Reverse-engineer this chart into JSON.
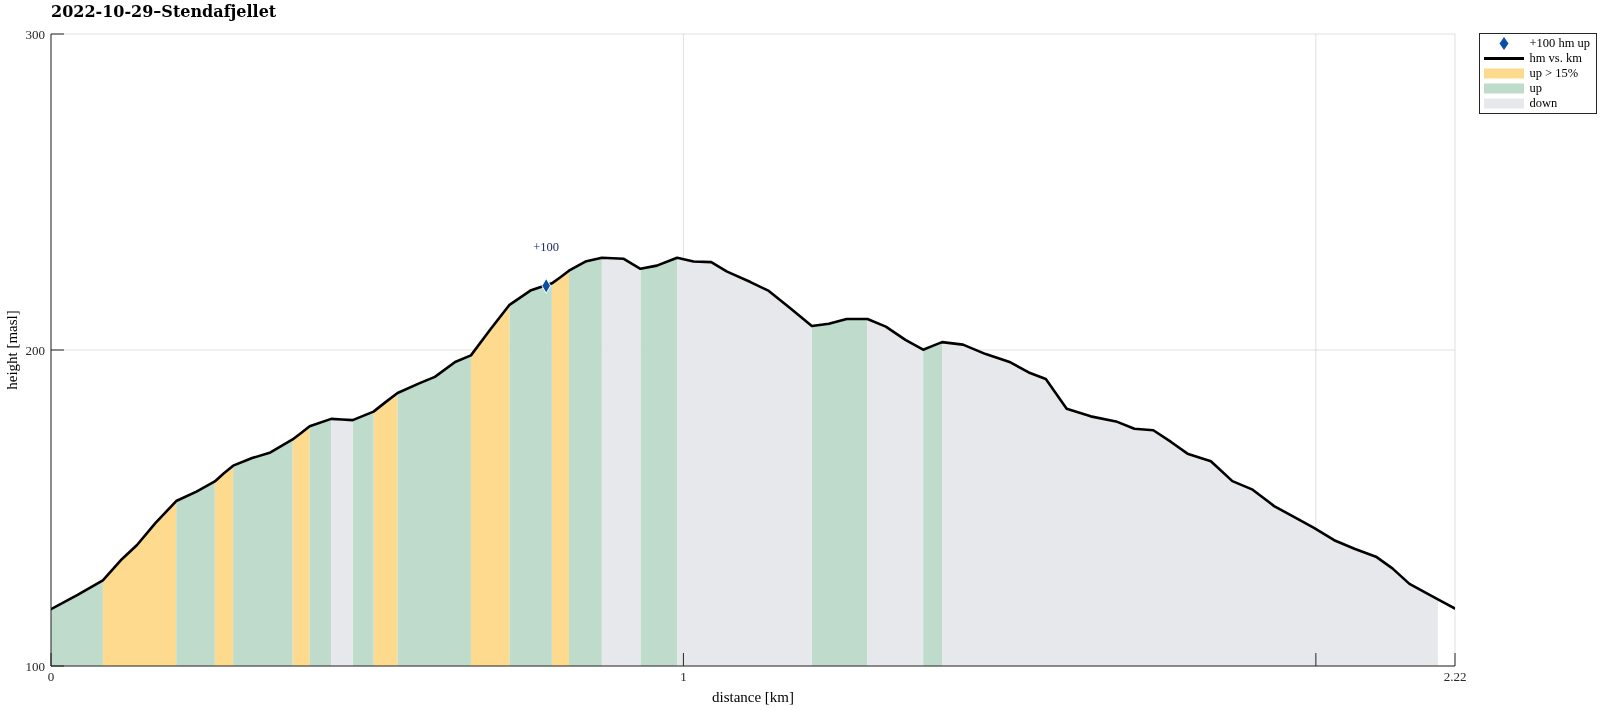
{
  "chart_data": {
    "type": "area",
    "title": "2022-10-29–Stendafjellet",
    "xlabel": "distance [km]",
    "ylabel": "height [masl]",
    "x": [
      0,
      0.042,
      0.082,
      0.112,
      0.136,
      0.165,
      0.198,
      0.23,
      0.259,
      0.273,
      0.288,
      0.318,
      0.347,
      0.382,
      0.396,
      0.409,
      0.443,
      0.46,
      0.477,
      0.51,
      0.529,
      0.548,
      0.583,
      0.607,
      0.639,
      0.664,
      0.694,
      0.725,
      0.758,
      0.792,
      0.806,
      0.819,
      0.845,
      0.871,
      0.905,
      0.932,
      0.958,
      0.99,
      1.016,
      1.044,
      1.069,
      1.106,
      1.135,
      1.169,
      1.203,
      1.23,
      1.258,
      1.291,
      1.32,
      1.351,
      1.379,
      1.394,
      1.409,
      1.442,
      1.478,
      1.517,
      1.546,
      1.573,
      1.606,
      1.644,
      1.684,
      1.713,
      1.743,
      1.771,
      1.797,
      1.834,
      1.868,
      1.9,
      1.934,
      1.966,
      1.997,
      2.029,
      2.061,
      2.095,
      2.121,
      2.148,
      2.193,
      2.22
    ],
    "xlim": [
      0,
      2.22
    ],
    "xticks": [
      0,
      1,
      {
        "value": 2,
        "label": null
      },
      2.22
    ],
    "ylim": [
      100,
      300
    ],
    "yticks": [
      100,
      200,
      300
    ],
    "grid": true,
    "legend": "top right",
    "annotations": [
      {
        "text": "+100",
        "x": 0.783,
        "y": 220.3
      }
    ],
    "series": [
      {
        "name": "+100 hm up",
        "type": "scatter",
        "color": "#0b4ea6",
        "marker": "diamond",
        "x": [
          0.783
        ],
        "values": [
          220.3
        ]
      },
      {
        "name": "hm vs. km",
        "type": "line",
        "color": "#000000",
        "values": [
          118.0,
          122.5,
          127.1,
          133.8,
          138.3,
          145.2,
          152.2,
          155.2,
          158.4,
          160.9,
          163.4,
          165.8,
          167.6,
          171.7,
          173.8,
          175.9,
          178.2,
          178.0,
          177.8,
          180.5,
          183.5,
          186.4,
          189.5,
          191.5,
          196.2,
          198.3,
          206.3,
          214.3,
          218.8,
          221.1,
          223.1,
          225.1,
          228.0,
          229.2,
          228.9,
          225.7,
          226.7,
          229.2,
          228.0,
          227.8,
          224.8,
          221.5,
          218.7,
          213.2,
          207.6,
          208.3,
          209.8,
          209.8,
          207.4,
          203.2,
          200.1,
          201.3,
          202.5,
          201.7,
          198.7,
          196.1,
          192.9,
          190.8,
          181.4,
          179.0,
          177.4,
          175.1,
          174.6,
          170.9,
          167.2,
          164.8,
          158.5,
          155.8,
          150.6,
          147.1,
          143.7,
          139.8,
          137.1,
          134.6,
          130.9,
          126.0,
          121.1,
          118.2
        ]
      },
      {
        "name": "up > 15%",
        "color": "#fdda8e",
        "values": [
          null,
          null,
          127.1,
          133.8,
          138.3,
          145.2,
          152.2,
          null,
          158.4,
          160.9,
          163.4,
          null,
          null,
          171.7,
          173.8,
          175.9,
          null,
          null,
          null,
          180.5,
          183.5,
          186.4,
          null,
          null,
          null,
          198.3,
          206.3,
          214.3,
          null,
          221.1,
          223.1,
          225.1,
          null,
          null,
          null,
          null,
          null,
          null,
          null,
          null,
          null,
          null,
          null,
          null,
          null,
          null,
          null,
          null,
          null,
          null,
          null,
          null,
          null,
          null,
          null,
          null,
          null,
          null,
          null,
          null,
          null,
          null,
          null,
          null,
          null,
          null,
          null,
          null,
          null,
          null,
          null,
          null,
          null,
          null,
          null,
          null,
          null,
          null
        ]
      },
      {
        "name": "up",
        "color": "#bfdbcb",
        "values": [
          118.0,
          122.5,
          127.1,
          null,
          null,
          null,
          152.2,
          155.2,
          158.4,
          null,
          163.4,
          165.8,
          167.6,
          171.7,
          null,
          175.9,
          178.2,
          null,
          177.8,
          180.5,
          null,
          186.4,
          189.5,
          191.5,
          196.2,
          198.3,
          null,
          214.3,
          218.8,
          221.1,
          null,
          225.1,
          228.0,
          229.2,
          null,
          225.7,
          226.7,
          229.2,
          null,
          null,
          null,
          null,
          null,
          null,
          207.6,
          208.3,
          209.8,
          209.8,
          null,
          null,
          200.1,
          201.3,
          202.5,
          null,
          null,
          null,
          null,
          null,
          null,
          null,
          null,
          null,
          null,
          null,
          null,
          null,
          null,
          null,
          null,
          null,
          null,
          null,
          null,
          null,
          null,
          null,
          null,
          null
        ]
      },
      {
        "name": "down",
        "color": "#e7e8ec",
        "values": [
          null,
          null,
          null,
          null,
          null,
          null,
          null,
          null,
          null,
          null,
          null,
          null,
          null,
          null,
          null,
          null,
          178.2,
          178.0,
          177.8,
          null,
          null,
          null,
          null,
          null,
          null,
          null,
          null,
          null,
          null,
          null,
          null,
          null,
          null,
          229.2,
          228.9,
          225.7,
          null,
          229.2,
          228.0,
          227.8,
          224.8,
          221.5,
          218.7,
          213.2,
          207.6,
          null,
          null,
          209.8,
          207.4,
          203.2,
          200.1,
          null,
          202.5,
          201.7,
          198.7,
          196.1,
          192.9,
          190.8,
          181.4,
          179.0,
          177.4,
          175.1,
          174.6,
          170.9,
          167.2,
          164.8,
          158.5,
          155.8,
          150.6,
          147.1,
          143.7,
          139.8,
          137.1,
          134.6,
          130.9,
          126.0,
          121.1,
          null
        ]
      }
    ]
  }
}
